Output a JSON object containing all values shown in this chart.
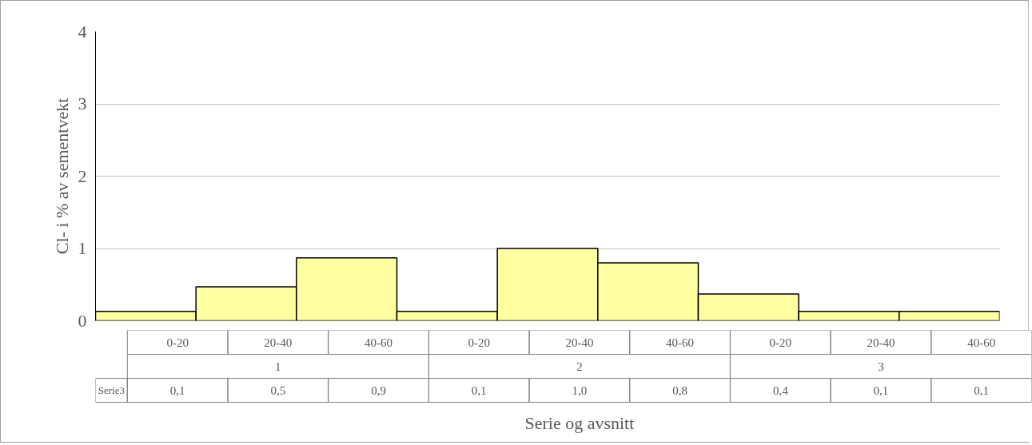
{
  "chart_data": {
    "type": "bar",
    "categories": [
      "0-20",
      "20-40",
      "40-60",
      "0-20",
      "20-40",
      "40-60",
      "0-20",
      "20-40",
      "40-60"
    ],
    "series": [
      {
        "name": "Serie3",
        "color": "#ffffa0",
        "values": [
          0.13,
          0.47,
          0.87,
          0.13,
          1.0,
          0.8,
          0.37,
          0.13,
          0.13
        ],
        "value_labels": [
          "0,1",
          "0,5",
          "0,9",
          "0,1",
          "1,0",
          "0,8",
          "0,4",
          "0,1",
          "0,1"
        ]
      }
    ],
    "annotations": [
      "1",
      "2",
      "3"
    ],
    "xlabel": "Serie og avsnitt",
    "ylabel": "Cl- i % av sementvekt",
    "ylim": [
      0,
      4
    ],
    "yticks": [
      0,
      1,
      2,
      3,
      4
    ],
    "grid": "y"
  }
}
